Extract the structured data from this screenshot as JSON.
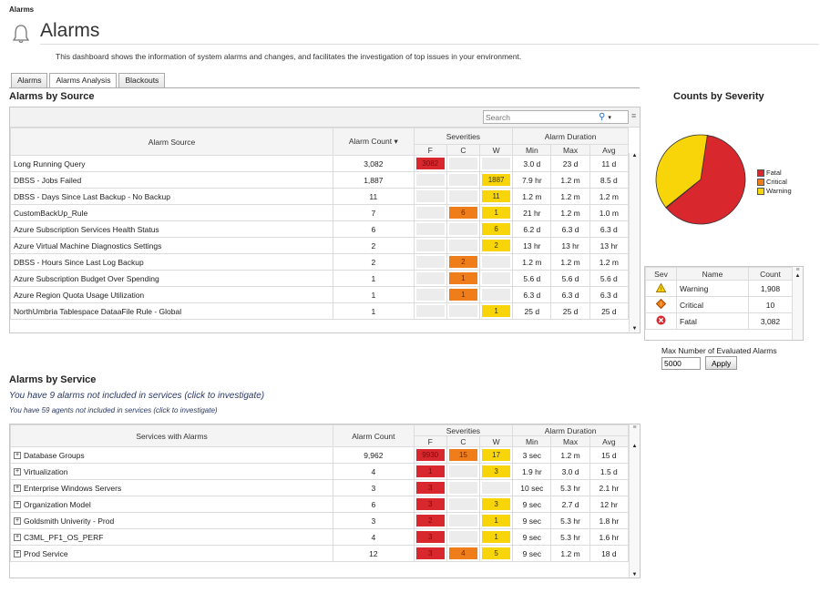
{
  "breadcrumb": "Alarms",
  "page_title": "Alarms",
  "description": "This dashboard shows the information of system alarms and changes, and facilitates the investigation of top issues in your environment.",
  "tabs": [
    "Alarms",
    "Alarms Analysis",
    "Blackouts"
  ],
  "active_tab": "Alarms Analysis",
  "by_source": {
    "heading": "Alarms by Source",
    "search_placeholder": "Search",
    "headers": {
      "source": "Alarm Source",
      "count": "Alarm Count",
      "severities": "Severities",
      "duration": "Alarm Duration",
      "f": "F",
      "c": "C",
      "w": "W",
      "min": "Min",
      "max": "Max",
      "avg": "Avg"
    },
    "rows": [
      {
        "name": "Long Running Query",
        "count": "3,082",
        "f": "3082",
        "c": "",
        "w": "",
        "min": "3.0 d",
        "max": "23 d",
        "avg": "11 d"
      },
      {
        "name": "DBSS - Jobs Failed",
        "count": "1,887",
        "f": "",
        "c": "",
        "w": "1887",
        "min": "7.9 hr",
        "max": "1.2 m",
        "avg": "8.5 d"
      },
      {
        "name": "DBSS - Days Since Last Backup - No Backup",
        "count": "11",
        "f": "",
        "c": "",
        "w": "11",
        "min": "1.2 m",
        "max": "1.2 m",
        "avg": "1.2 m"
      },
      {
        "name": "CustomBackUp_Rule",
        "count": "7",
        "f": "",
        "c": "6",
        "w": "1",
        "min": "21 hr",
        "max": "1.2 m",
        "avg": "1.0 m"
      },
      {
        "name": "Azure Subscription Services Health Status",
        "count": "6",
        "f": "",
        "c": "",
        "w": "6",
        "min": "6.2 d",
        "max": "6.3 d",
        "avg": "6.3 d"
      },
      {
        "name": "Azure Virtual Machine Diagnostics Settings",
        "count": "2",
        "f": "",
        "c": "",
        "w": "2",
        "min": "13 hr",
        "max": "13 hr",
        "avg": "13 hr"
      },
      {
        "name": "DBSS - Hours Since Last Log Backup",
        "count": "2",
        "f": "",
        "c": "2",
        "w": "",
        "min": "1.2 m",
        "max": "1.2 m",
        "avg": "1.2 m"
      },
      {
        "name": "Azure Subscription Budget Over Spending",
        "count": "1",
        "f": "",
        "c": "1",
        "w": "",
        "min": "5.6 d",
        "max": "5.6 d",
        "avg": "5.6 d"
      },
      {
        "name": "Azure Region Quota Usage Utilization",
        "count": "1",
        "f": "",
        "c": "1",
        "w": "",
        "min": "6.3 d",
        "max": "6.3 d",
        "avg": "6.3 d"
      },
      {
        "name": "NorthUmbria Tablespace DataaFile Rule - Global",
        "count": "1",
        "f": "",
        "c": "",
        "w": "1",
        "min": "25 d",
        "max": "25 d",
        "avg": "25 d"
      }
    ]
  },
  "counts_by_severity": {
    "heading": "Counts by Severity",
    "legend": [
      "Fatal",
      "Critical",
      "Warning"
    ],
    "colors": {
      "fatal": "#d9272e",
      "critical": "#ee7d1a",
      "warning": "#f7d508"
    },
    "chart_data": {
      "type": "pie",
      "categories": [
        "Fatal",
        "Critical",
        "Warning"
      ],
      "values": [
        3082,
        10,
        1908
      ],
      "title": "Counts by Severity"
    },
    "headers": {
      "sev": "Sev",
      "name": "Name",
      "count": "Count"
    },
    "rows": [
      {
        "icon": "warning-icon",
        "name": "Warning",
        "count": "1,908"
      },
      {
        "icon": "critical-icon",
        "name": "Critical",
        "count": "10"
      },
      {
        "icon": "fatal-icon",
        "name": "Fatal",
        "count": "3,082"
      }
    ],
    "max_label": "Max Number of Evaluated Alarms",
    "max_value": "5000",
    "apply_label": "Apply"
  },
  "by_service": {
    "heading": "Alarms by Service",
    "not_included_alarms": "You have 9 alarms not included in services (click to investigate)",
    "not_included_agents": "You have 59 agents not included in services (click to investigate)",
    "headers": {
      "service": "Services with Alarms",
      "count": "Alarm Count",
      "severities": "Severities",
      "duration": "Alarm Duration",
      "f": "F",
      "c": "C",
      "w": "W",
      "min": "Min",
      "max": "Max",
      "avg": "Avg"
    },
    "rows": [
      {
        "name": "Database Groups",
        "count": "9,962",
        "f": "9930",
        "c": "15",
        "w": "17",
        "min": "3 sec",
        "max": "1.2 m",
        "avg": "15 d"
      },
      {
        "name": "Virtualization",
        "count": "4",
        "f": "1",
        "c": "",
        "w": "3",
        "min": "1.9 hr",
        "max": "3.0 d",
        "avg": "1.5 d"
      },
      {
        "name": "Enterprise Windows Servers",
        "count": "3",
        "f": "3",
        "c": "",
        "w": "",
        "min": "10 sec",
        "max": "5.3 hr",
        "avg": "2.1 hr"
      },
      {
        "name": "Organization Model",
        "count": "6",
        "f": "3",
        "c": "",
        "w": "3",
        "min": "9 sec",
        "max": "2.7 d",
        "avg": "12 hr"
      },
      {
        "name": "Goldsmith Univerity - Prod",
        "count": "3",
        "f": "2",
        "c": "",
        "w": "1",
        "min": "9 sec",
        "max": "5.3 hr",
        "avg": "1.8 hr"
      },
      {
        "name": "C3ML_PF1_OS_PERF",
        "count": "4",
        "f": "3",
        "c": "",
        "w": "1",
        "min": "9 sec",
        "max": "5.3 hr",
        "avg": "1.6 hr"
      },
      {
        "name": "Prod Service",
        "count": "12",
        "f": "3",
        "c": "4",
        "w": "5",
        "min": "9 sec",
        "max": "1.2 m",
        "avg": "18 d"
      }
    ]
  }
}
